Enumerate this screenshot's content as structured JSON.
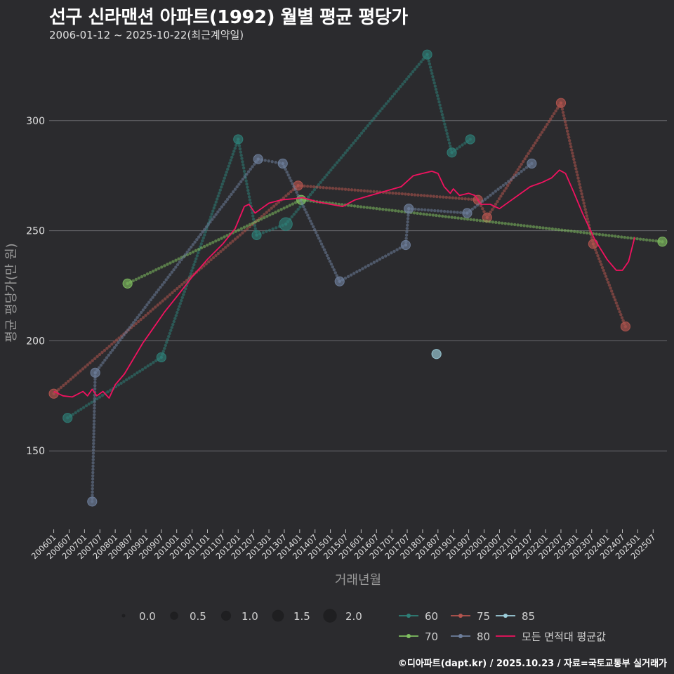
{
  "title": "선구 신라맨션 아파트(1992) 월별 평균 평당가",
  "subtitle": "2006-01-12 ~ 2025-10-22(최근계약일)",
  "caption": "©디아파트(dapt.kr) / 2025.10.23 / 자료=국토교통부 실거래가",
  "chart_data": {
    "type": "line",
    "title": "선구 신라맨션 아파트(1992) 월별 평균 평당가",
    "xlabel": "거래년월",
    "ylabel": "평균 평당가(만 원)",
    "ylim": [
      115,
      335
    ],
    "yticks": [
      150,
      200,
      250,
      300
    ],
    "xlim": [
      2005.85,
      2025.95
    ],
    "xticks": [
      "200601",
      "200607",
      "200701",
      "200707",
      "200801",
      "200807",
      "200901",
      "200907",
      "201001",
      "201007",
      "201101",
      "201107",
      "201201",
      "201207",
      "201301",
      "201307",
      "201401",
      "201407",
      "201501",
      "201507",
      "201601",
      "201607",
      "201701",
      "201707",
      "201801",
      "201807",
      "201901",
      "201907",
      "202001",
      "202007",
      "202101",
      "202107",
      "202201",
      "202207",
      "202301",
      "202307",
      "202401",
      "202407",
      "202501",
      "202507"
    ],
    "size_legend": {
      "values": [
        "0.0",
        "0.5",
        "1.0",
        "1.5",
        "2.0"
      ]
    },
    "color_legend": [
      "60",
      "75",
      "85",
      "70",
      "80",
      "모든 면적대 평균값"
    ],
    "colors": {
      "60": "#2e8078",
      "75": "#b5554f",
      "85": "#9ecfdc",
      "70": "#7fbf60",
      "80": "#6e7f9c",
      "avg": "#f0125f"
    },
    "series": [
      {
        "name": "60",
        "color": "#2e8078",
        "points": [
          [
            2006.45,
            165,
            1.0
          ],
          [
            2009.5,
            192.5,
            1.0
          ],
          [
            2012.0,
            291.5,
            1.0
          ],
          [
            2012.6,
            248,
            1.0
          ],
          [
            2013.55,
            253,
            2.0
          ],
          [
            2018.15,
            330,
            1.0
          ],
          [
            2018.95,
            285.5,
            1.0
          ],
          [
            2019.55,
            291.5,
            1.0
          ]
        ]
      },
      {
        "name": "75",
        "color": "#b5554f",
        "points": [
          [
            2006.0,
            176,
            1.0
          ],
          [
            2013.95,
            270.5,
            1.0
          ],
          [
            2019.8,
            264,
            1.0
          ],
          [
            2020.1,
            256,
            1.0
          ],
          [
            2022.5,
            308,
            1.0
          ],
          [
            2023.55,
            244,
            1.0
          ],
          [
            2024.6,
            206.5,
            1.0
          ]
        ]
      },
      {
        "name": "85",
        "color": "#9ecfdc",
        "points": [
          [
            2018.45,
            194,
            1.0
          ]
        ]
      },
      {
        "name": "70",
        "color": "#7fbf60",
        "points": [
          [
            2008.4,
            226,
            1.0
          ],
          [
            2014.05,
            264,
            1.0
          ],
          [
            2025.8,
            245,
            1.0
          ]
        ]
      },
      {
        "name": "80",
        "color": "#6e7f9c",
        "points": [
          [
            2007.25,
            127,
            1.0
          ],
          [
            2007.35,
            185.5,
            1.0
          ],
          [
            2012.65,
            282.5,
            1.0
          ],
          [
            2013.45,
            280.5,
            1.0
          ],
          [
            2015.3,
            227,
            1.0
          ],
          [
            2017.45,
            243.5,
            1.0
          ],
          [
            2017.55,
            260,
            1.0
          ],
          [
            2019.45,
            258,
            1.0
          ],
          [
            2021.55,
            280.5,
            1.0
          ]
        ]
      },
      {
        "name": "모든 면적대 평균값",
        "color": "#f0125f",
        "points": [
          [
            2006.0,
            177
          ],
          [
            2006.3,
            175
          ],
          [
            2006.6,
            174.5
          ],
          [
            2006.95,
            177
          ],
          [
            2007.1,
            175
          ],
          [
            2007.25,
            178
          ],
          [
            2007.4,
            175
          ],
          [
            2007.6,
            177
          ],
          [
            2007.8,
            174
          ],
          [
            2008.0,
            180
          ],
          [
            2008.3,
            185
          ],
          [
            2008.6,
            192
          ],
          [
            2008.9,
            199
          ],
          [
            2009.2,
            205
          ],
          [
            2009.6,
            213
          ],
          [
            2010.0,
            220
          ],
          [
            2010.5,
            229
          ],
          [
            2011.0,
            237
          ],
          [
            2011.5,
            244
          ],
          [
            2011.9,
            251
          ],
          [
            2012.2,
            261
          ],
          [
            2012.35,
            262
          ],
          [
            2012.55,
            258
          ],
          [
            2012.75,
            260
          ],
          [
            2013.0,
            262.5
          ],
          [
            2013.4,
            264
          ],
          [
            2013.8,
            264.5
          ],
          [
            2014.1,
            265
          ],
          [
            2014.6,
            263
          ],
          [
            2015.0,
            262
          ],
          [
            2015.4,
            261
          ],
          [
            2015.8,
            264
          ],
          [
            2016.3,
            266
          ],
          [
            2016.8,
            268
          ],
          [
            2017.3,
            270
          ],
          [
            2017.7,
            275
          ],
          [
            2018.0,
            276
          ],
          [
            2018.3,
            277
          ],
          [
            2018.5,
            276
          ],
          [
            2018.7,
            270
          ],
          [
            2018.9,
            267
          ],
          [
            2019.0,
            269
          ],
          [
            2019.2,
            266
          ],
          [
            2019.5,
            267
          ],
          [
            2019.7,
            266
          ],
          [
            2019.9,
            262
          ],
          [
            2020.2,
            262
          ],
          [
            2020.5,
            260
          ],
          [
            2020.8,
            263
          ],
          [
            2021.1,
            266
          ],
          [
            2021.5,
            270
          ],
          [
            2021.9,
            272
          ],
          [
            2022.2,
            274
          ],
          [
            2022.45,
            277.5
          ],
          [
            2022.65,
            276
          ],
          [
            2022.9,
            268
          ],
          [
            2023.2,
            258
          ],
          [
            2023.6,
            246
          ],
          [
            2024.0,
            237
          ],
          [
            2024.3,
            232
          ],
          [
            2024.5,
            232
          ],
          [
            2024.7,
            236
          ],
          [
            2024.9,
            247
          ]
        ]
      }
    ]
  }
}
